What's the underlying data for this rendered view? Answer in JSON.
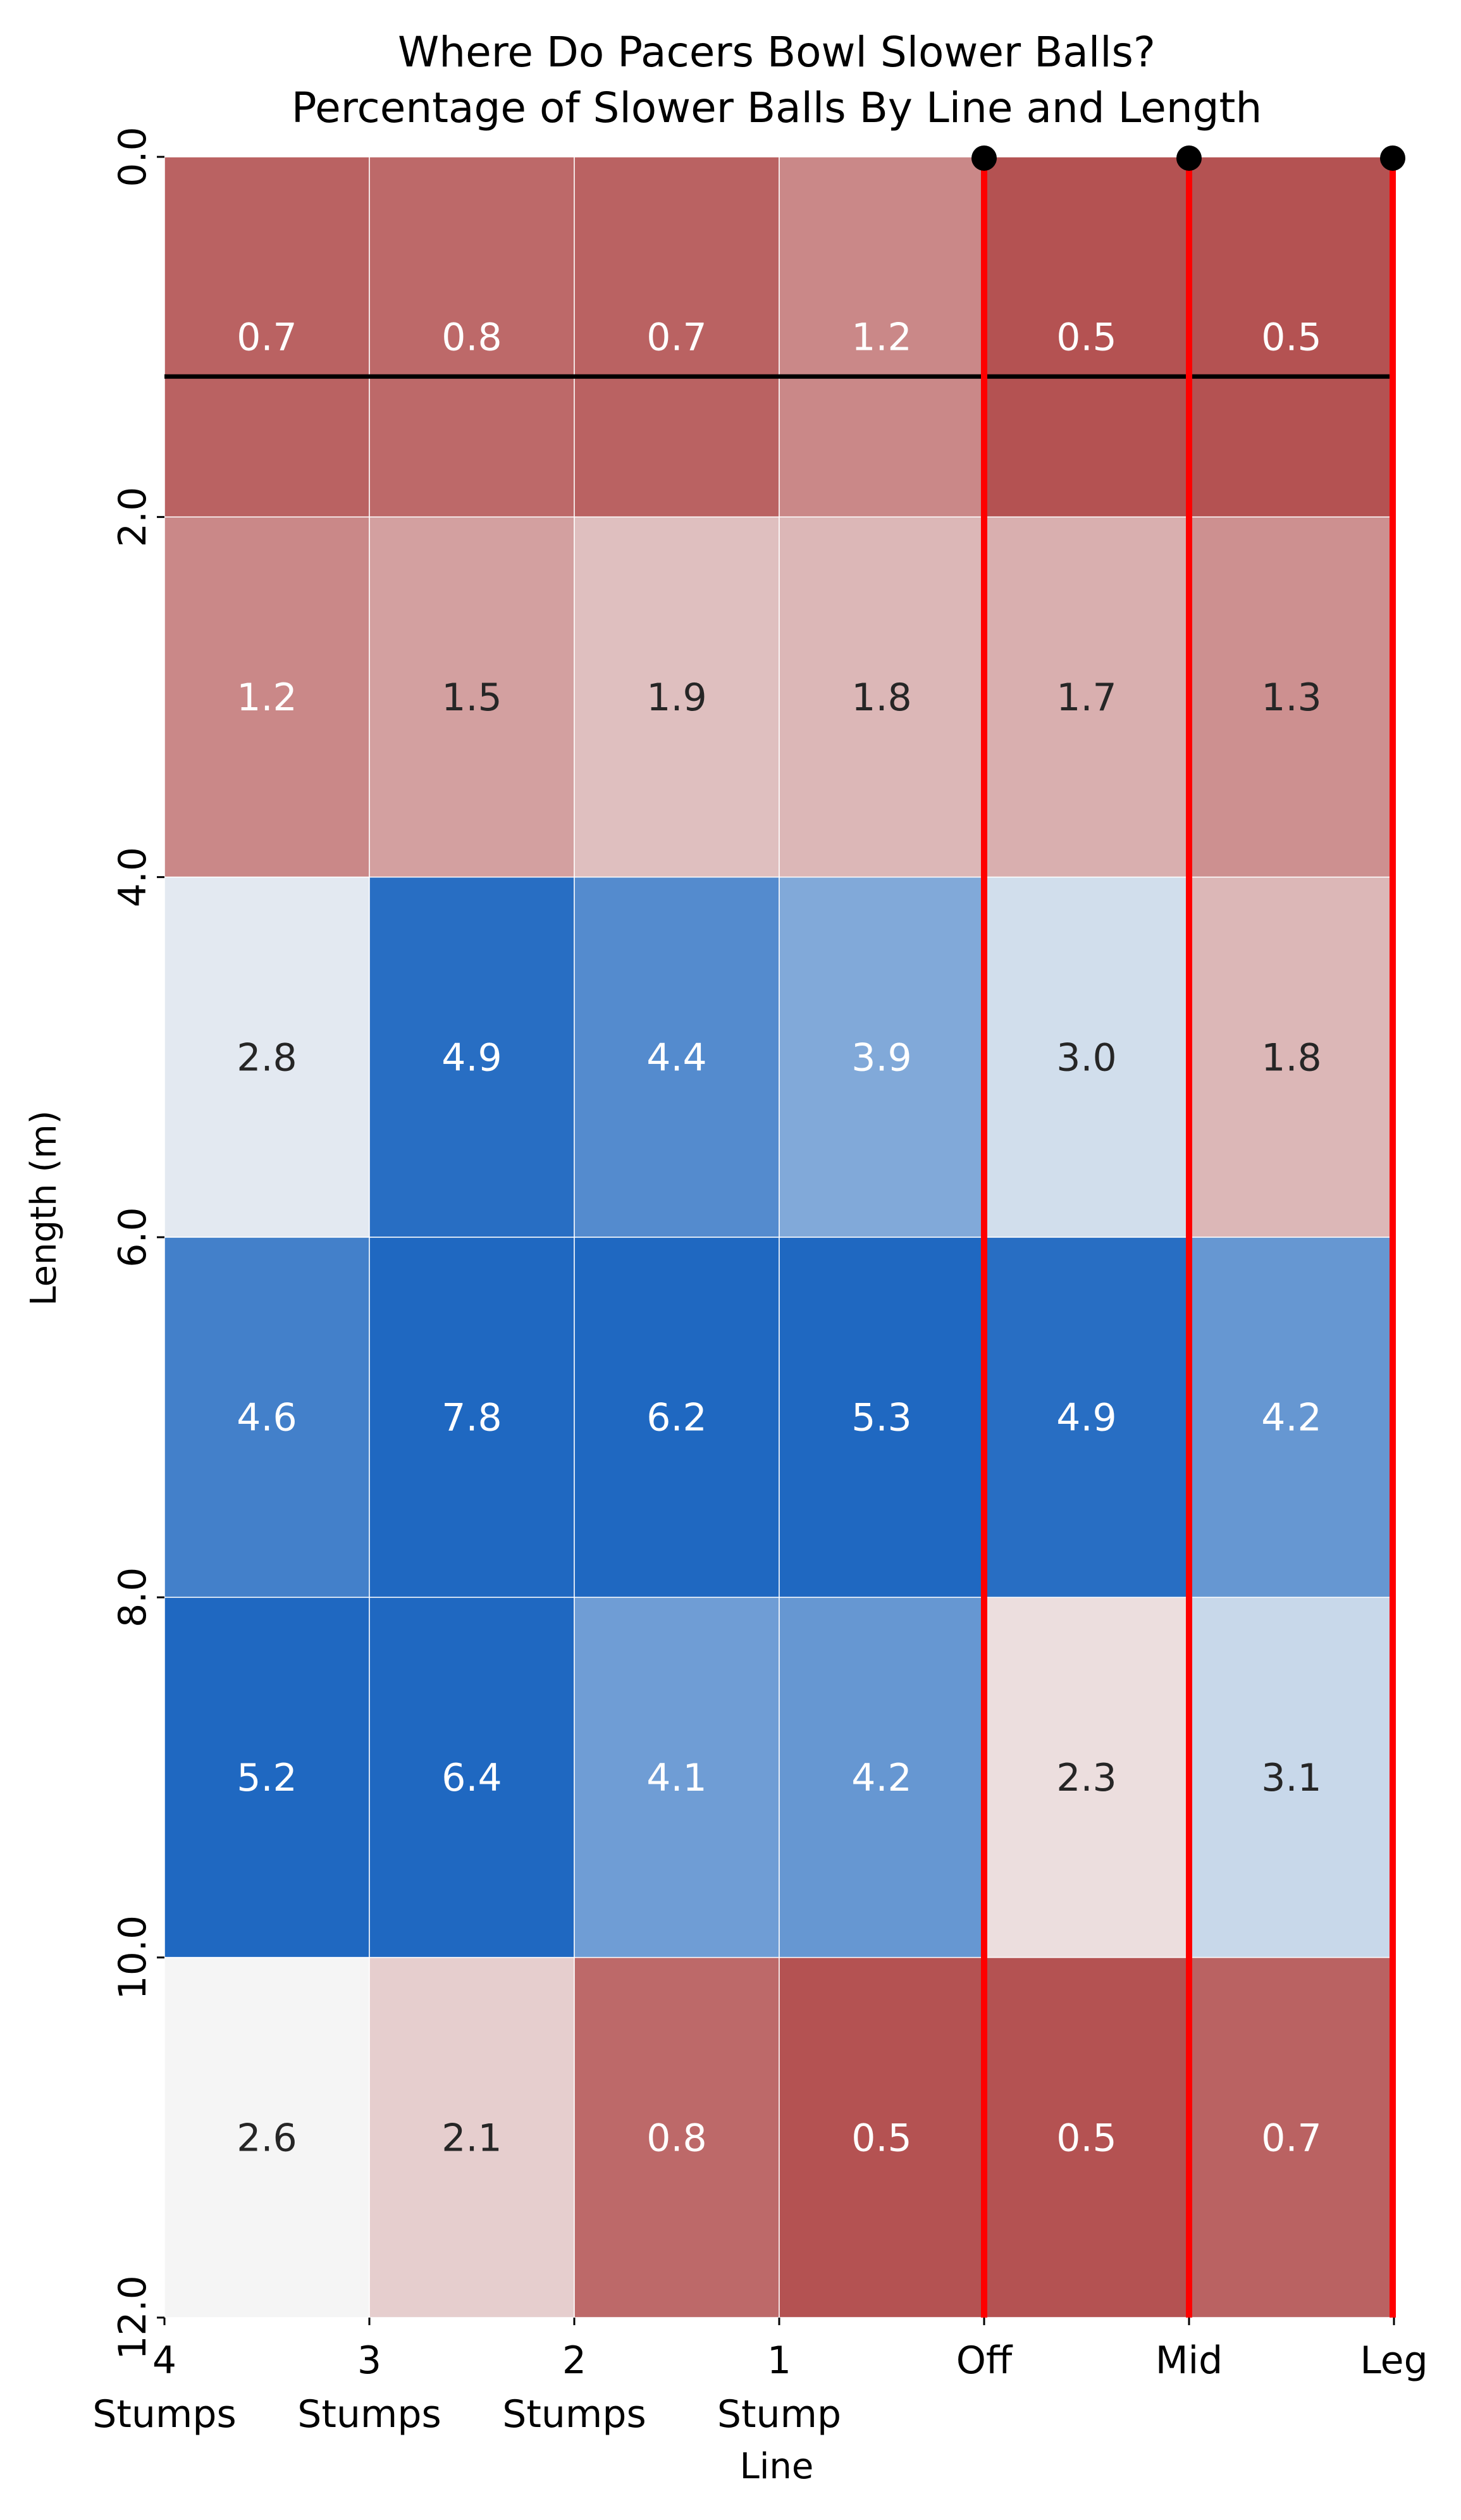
{
  "chart_data": {
    "type": "heatmap",
    "title": "Where Do Pacers Bowl Slower Balls?",
    "subtitle": "Percentage of Slower Balls By Line and Length",
    "xlabel": "Line",
    "ylabel": "Length (m)",
    "x_tick_labels": [
      "4 Stumps",
      "3 Stumps",
      "2 Stumps",
      "1 Stump",
      "Off",
      "Mid",
      "Leg"
    ],
    "y_tick_labels": [
      "0.0",
      "2.0",
      "4.0",
      "6.0",
      "8.0",
      "10.0",
      "12.0"
    ],
    "ylim": [
      0,
      12
    ],
    "grid": false,
    "colormap": "diverging blue-white-red (high = blue, low = red)",
    "low_color": "#b45252",
    "high_color": "#1f68c1",
    "values": [
      [
        0.7,
        0.8,
        0.7,
        1.2,
        0.5,
        0.5
      ],
      [
        1.2,
        1.5,
        1.9,
        1.8,
        1.7,
        1.3
      ],
      [
        2.8,
        4.9,
        4.4,
        3.9,
        3.0,
        1.8
      ],
      [
        4.6,
        7.8,
        6.2,
        5.3,
        4.9,
        4.2
      ],
      [
        5.2,
        6.4,
        4.1,
        4.2,
        2.3,
        3.1
      ],
      [
        2.6,
        2.1,
        0.8,
        0.5,
        0.5,
        0.7
      ]
    ],
    "overlays": {
      "horizontal_line": {
        "y": 1.22,
        "color": "#000000"
      },
      "stump_lines": {
        "x_ticks": [
          "Off",
          "Mid",
          "Leg"
        ],
        "color": "#ff0000",
        "marker_color": "#000000"
      }
    }
  }
}
